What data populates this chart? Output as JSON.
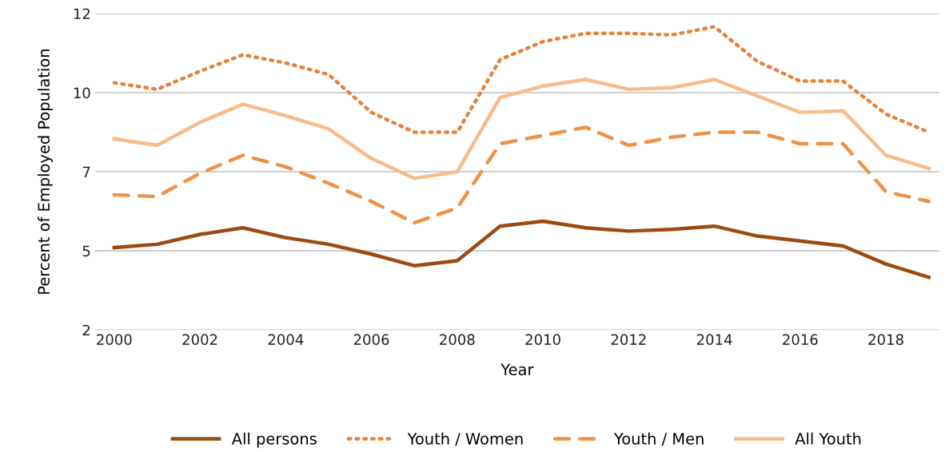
{
  "chart_data": {
    "type": "line",
    "xlabel": "Year",
    "ylabel": "Percent of Employed Population",
    "x": [
      2000,
      2001,
      2002,
      2003,
      2004,
      2005,
      2006,
      2007,
      2008,
      2009,
      2010,
      2011,
      2012,
      2013,
      2014,
      2015,
      2016,
      2017,
      2018,
      2019
    ],
    "series": [
      {
        "name": "All persons",
        "color": "#9c4a0f",
        "line_style": "solid",
        "values": [
          4.9,
          5.0,
          5.3,
          5.5,
          5.2,
          5.0,
          4.7,
          4.35,
          4.5,
          5.55,
          5.7,
          5.5,
          5.4,
          5.45,
          5.55,
          5.25,
          5.1,
          4.95,
          4.4,
          4.0
        ]
      },
      {
        "name": "Youth / Women",
        "color": "#e8823a",
        "line_style": "dotted",
        "values": [
          9.9,
          9.7,
          10.25,
          10.75,
          10.5,
          10.15,
          9.0,
          8.4,
          8.4,
          10.6,
          11.15,
          11.4,
          11.4,
          11.35,
          11.6,
          10.55,
          9.95,
          9.95,
          8.95,
          8.4
        ]
      },
      {
        "name": "Youth / Men",
        "color": "#f09245",
        "line_style": "dashed",
        "values": [
          6.5,
          6.45,
          7.15,
          7.7,
          7.35,
          6.85,
          6.3,
          5.65,
          6.1,
          8.05,
          8.3,
          8.55,
          8.0,
          8.25,
          8.4,
          8.4,
          8.05,
          8.05,
          6.6,
          6.3
        ]
      },
      {
        "name": "All Youth",
        "color": "#f8bb8a",
        "line_style": "solid",
        "values": [
          8.2,
          8.0,
          8.7,
          9.25,
          8.9,
          8.5,
          7.6,
          7.0,
          7.2,
          9.45,
          9.8,
          10.0,
          9.7,
          9.75,
          10.0,
          9.5,
          9.0,
          9.05,
          7.7,
          7.3
        ]
      }
    ],
    "xlim": [
      1999.55,
      2019.25
    ],
    "ylim": [
      2.4,
      12.0
    ],
    "xticks": [
      2000,
      2002,
      2004,
      2006,
      2008,
      2010,
      2012,
      2014,
      2016,
      2018
    ],
    "yticks": [
      {
        "value": 2.4,
        "label": "2"
      },
      {
        "value": 4.8,
        "label": "5"
      },
      {
        "value": 7.2,
        "label": "7"
      },
      {
        "value": 9.6,
        "label": "10"
      },
      {
        "value": 12.0,
        "label": "12"
      }
    ],
    "grid": "y",
    "legend": "bottom"
  }
}
